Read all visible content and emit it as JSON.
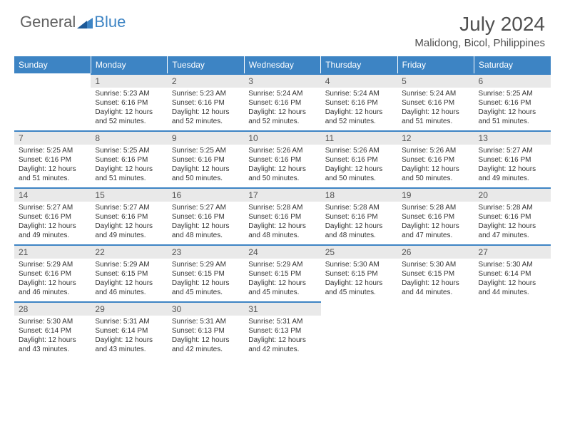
{
  "logo": {
    "general": "General",
    "blue": "Blue"
  },
  "title": "July 2024",
  "subtitle": "Malidong, Bicol, Philippines",
  "colors": {
    "header_bg": "#3d84c4",
    "header_text": "#ffffff",
    "daynum_bg": "#e9e9e9",
    "daynum_border": "#3d84c4",
    "text": "#333333",
    "title_color": "#505050"
  },
  "weekdays": [
    "Sunday",
    "Monday",
    "Tuesday",
    "Wednesday",
    "Thursday",
    "Friday",
    "Saturday"
  ],
  "weeks": [
    [
      null,
      {
        "n": "1",
        "sr": "Sunrise: 5:23 AM",
        "ss": "Sunset: 6:16 PM",
        "d1": "Daylight: 12 hours",
        "d2": "and 52 minutes."
      },
      {
        "n": "2",
        "sr": "Sunrise: 5:23 AM",
        "ss": "Sunset: 6:16 PM",
        "d1": "Daylight: 12 hours",
        "d2": "and 52 minutes."
      },
      {
        "n": "3",
        "sr": "Sunrise: 5:24 AM",
        "ss": "Sunset: 6:16 PM",
        "d1": "Daylight: 12 hours",
        "d2": "and 52 minutes."
      },
      {
        "n": "4",
        "sr": "Sunrise: 5:24 AM",
        "ss": "Sunset: 6:16 PM",
        "d1": "Daylight: 12 hours",
        "d2": "and 52 minutes."
      },
      {
        "n": "5",
        "sr": "Sunrise: 5:24 AM",
        "ss": "Sunset: 6:16 PM",
        "d1": "Daylight: 12 hours",
        "d2": "and 51 minutes."
      },
      {
        "n": "6",
        "sr": "Sunrise: 5:25 AM",
        "ss": "Sunset: 6:16 PM",
        "d1": "Daylight: 12 hours",
        "d2": "and 51 minutes."
      }
    ],
    [
      {
        "n": "7",
        "sr": "Sunrise: 5:25 AM",
        "ss": "Sunset: 6:16 PM",
        "d1": "Daylight: 12 hours",
        "d2": "and 51 minutes."
      },
      {
        "n": "8",
        "sr": "Sunrise: 5:25 AM",
        "ss": "Sunset: 6:16 PM",
        "d1": "Daylight: 12 hours",
        "d2": "and 51 minutes."
      },
      {
        "n": "9",
        "sr": "Sunrise: 5:25 AM",
        "ss": "Sunset: 6:16 PM",
        "d1": "Daylight: 12 hours",
        "d2": "and 50 minutes."
      },
      {
        "n": "10",
        "sr": "Sunrise: 5:26 AM",
        "ss": "Sunset: 6:16 PM",
        "d1": "Daylight: 12 hours",
        "d2": "and 50 minutes."
      },
      {
        "n": "11",
        "sr": "Sunrise: 5:26 AM",
        "ss": "Sunset: 6:16 PM",
        "d1": "Daylight: 12 hours",
        "d2": "and 50 minutes."
      },
      {
        "n": "12",
        "sr": "Sunrise: 5:26 AM",
        "ss": "Sunset: 6:16 PM",
        "d1": "Daylight: 12 hours",
        "d2": "and 50 minutes."
      },
      {
        "n": "13",
        "sr": "Sunrise: 5:27 AM",
        "ss": "Sunset: 6:16 PM",
        "d1": "Daylight: 12 hours",
        "d2": "and 49 minutes."
      }
    ],
    [
      {
        "n": "14",
        "sr": "Sunrise: 5:27 AM",
        "ss": "Sunset: 6:16 PM",
        "d1": "Daylight: 12 hours",
        "d2": "and 49 minutes."
      },
      {
        "n": "15",
        "sr": "Sunrise: 5:27 AM",
        "ss": "Sunset: 6:16 PM",
        "d1": "Daylight: 12 hours",
        "d2": "and 49 minutes."
      },
      {
        "n": "16",
        "sr": "Sunrise: 5:27 AM",
        "ss": "Sunset: 6:16 PM",
        "d1": "Daylight: 12 hours",
        "d2": "and 48 minutes."
      },
      {
        "n": "17",
        "sr": "Sunrise: 5:28 AM",
        "ss": "Sunset: 6:16 PM",
        "d1": "Daylight: 12 hours",
        "d2": "and 48 minutes."
      },
      {
        "n": "18",
        "sr": "Sunrise: 5:28 AM",
        "ss": "Sunset: 6:16 PM",
        "d1": "Daylight: 12 hours",
        "d2": "and 48 minutes."
      },
      {
        "n": "19",
        "sr": "Sunrise: 5:28 AM",
        "ss": "Sunset: 6:16 PM",
        "d1": "Daylight: 12 hours",
        "d2": "and 47 minutes."
      },
      {
        "n": "20",
        "sr": "Sunrise: 5:28 AM",
        "ss": "Sunset: 6:16 PM",
        "d1": "Daylight: 12 hours",
        "d2": "and 47 minutes."
      }
    ],
    [
      {
        "n": "21",
        "sr": "Sunrise: 5:29 AM",
        "ss": "Sunset: 6:16 PM",
        "d1": "Daylight: 12 hours",
        "d2": "and 46 minutes."
      },
      {
        "n": "22",
        "sr": "Sunrise: 5:29 AM",
        "ss": "Sunset: 6:15 PM",
        "d1": "Daylight: 12 hours",
        "d2": "and 46 minutes."
      },
      {
        "n": "23",
        "sr": "Sunrise: 5:29 AM",
        "ss": "Sunset: 6:15 PM",
        "d1": "Daylight: 12 hours",
        "d2": "and 45 minutes."
      },
      {
        "n": "24",
        "sr": "Sunrise: 5:29 AM",
        "ss": "Sunset: 6:15 PM",
        "d1": "Daylight: 12 hours",
        "d2": "and 45 minutes."
      },
      {
        "n": "25",
        "sr": "Sunrise: 5:30 AM",
        "ss": "Sunset: 6:15 PM",
        "d1": "Daylight: 12 hours",
        "d2": "and 45 minutes."
      },
      {
        "n": "26",
        "sr": "Sunrise: 5:30 AM",
        "ss": "Sunset: 6:15 PM",
        "d1": "Daylight: 12 hours",
        "d2": "and 44 minutes."
      },
      {
        "n": "27",
        "sr": "Sunrise: 5:30 AM",
        "ss": "Sunset: 6:14 PM",
        "d1": "Daylight: 12 hours",
        "d2": "and 44 minutes."
      }
    ],
    [
      {
        "n": "28",
        "sr": "Sunrise: 5:30 AM",
        "ss": "Sunset: 6:14 PM",
        "d1": "Daylight: 12 hours",
        "d2": "and 43 minutes."
      },
      {
        "n": "29",
        "sr": "Sunrise: 5:31 AM",
        "ss": "Sunset: 6:14 PM",
        "d1": "Daylight: 12 hours",
        "d2": "and 43 minutes."
      },
      {
        "n": "30",
        "sr": "Sunrise: 5:31 AM",
        "ss": "Sunset: 6:13 PM",
        "d1": "Daylight: 12 hours",
        "d2": "and 42 minutes."
      },
      {
        "n": "31",
        "sr": "Sunrise: 5:31 AM",
        "ss": "Sunset: 6:13 PM",
        "d1": "Daylight: 12 hours",
        "d2": "and 42 minutes."
      },
      null,
      null,
      null
    ]
  ]
}
